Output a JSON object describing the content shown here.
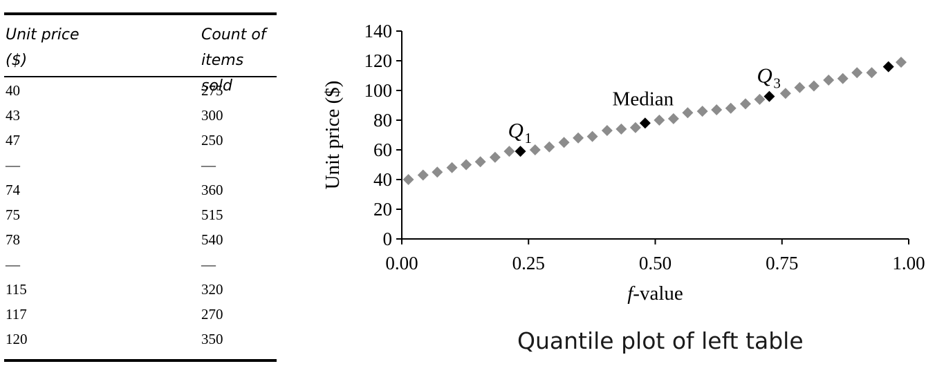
{
  "table": {
    "headers": [
      "Unit price\n($)",
      "Count of\nitems sold"
    ],
    "rows": [
      [
        "40",
        "275"
      ],
      [
        "43",
        "300"
      ],
      [
        "47",
        "250"
      ],
      [
        "—",
        "—"
      ],
      [
        "74",
        "360"
      ],
      [
        "75",
        "515"
      ],
      [
        "78",
        "540"
      ],
      [
        "—",
        "—"
      ],
      [
        "115",
        "320"
      ],
      [
        "117",
        "270"
      ],
      [
        "120",
        "350"
      ]
    ]
  },
  "caption": "Quantile plot of left table",
  "chart_data": {
    "type": "scatter",
    "xlabel_italic": "f",
    "xlabel_rest": "-value",
    "ylabel": "Unit price ($)",
    "xlim": [
      0,
      1
    ],
    "ylim": [
      0,
      140
    ],
    "xticks": [
      "0.00",
      "0.25",
      "0.50",
      "0.75",
      "1.00"
    ],
    "yticks": [
      "0",
      "20",
      "40",
      "60",
      "80",
      "100",
      "120",
      "140"
    ],
    "grid": false,
    "marker": "diamond",
    "colors": {
      "point": "#8c8c8c",
      "highlight": "#000000"
    },
    "series": [
      {
        "x": [
          0.013,
          0.042,
          0.07,
          0.099,
          0.127,
          0.155,
          0.184,
          0.212,
          0.263,
          0.291,
          0.32,
          0.348,
          0.376,
          0.405,
          0.433,
          0.461,
          0.508,
          0.536,
          0.564,
          0.593,
          0.621,
          0.649,
          0.678,
          0.706,
          0.757,
          0.785,
          0.813,
          0.842,
          0.87,
          0.898,
          0.927,
          0.985
        ],
        "y": [
          40,
          43,
          45,
          48,
          50,
          52,
          55,
          59,
          60,
          62,
          65,
          68,
          69,
          73,
          74,
          75,
          80,
          81,
          85,
          86,
          87,
          88,
          91,
          94,
          98,
          102,
          103,
          107,
          108,
          112,
          112,
          119
        ]
      }
    ],
    "highlight_points": [
      {
        "x": 0.234,
        "y": 59
      },
      {
        "x": 0.48,
        "y": 78
      },
      {
        "x": 0.725,
        "y": 96
      },
      {
        "x": 0.96,
        "y": 116
      }
    ],
    "annotations": [
      {
        "label": "Q",
        "sub": "1",
        "x": 0.234,
        "y": 59
      },
      {
        "label": "Median",
        "sub": "",
        "x": 0.48,
        "y": 78
      },
      {
        "label": "Q",
        "sub": "3",
        "x": 0.725,
        "y": 96
      }
    ]
  }
}
